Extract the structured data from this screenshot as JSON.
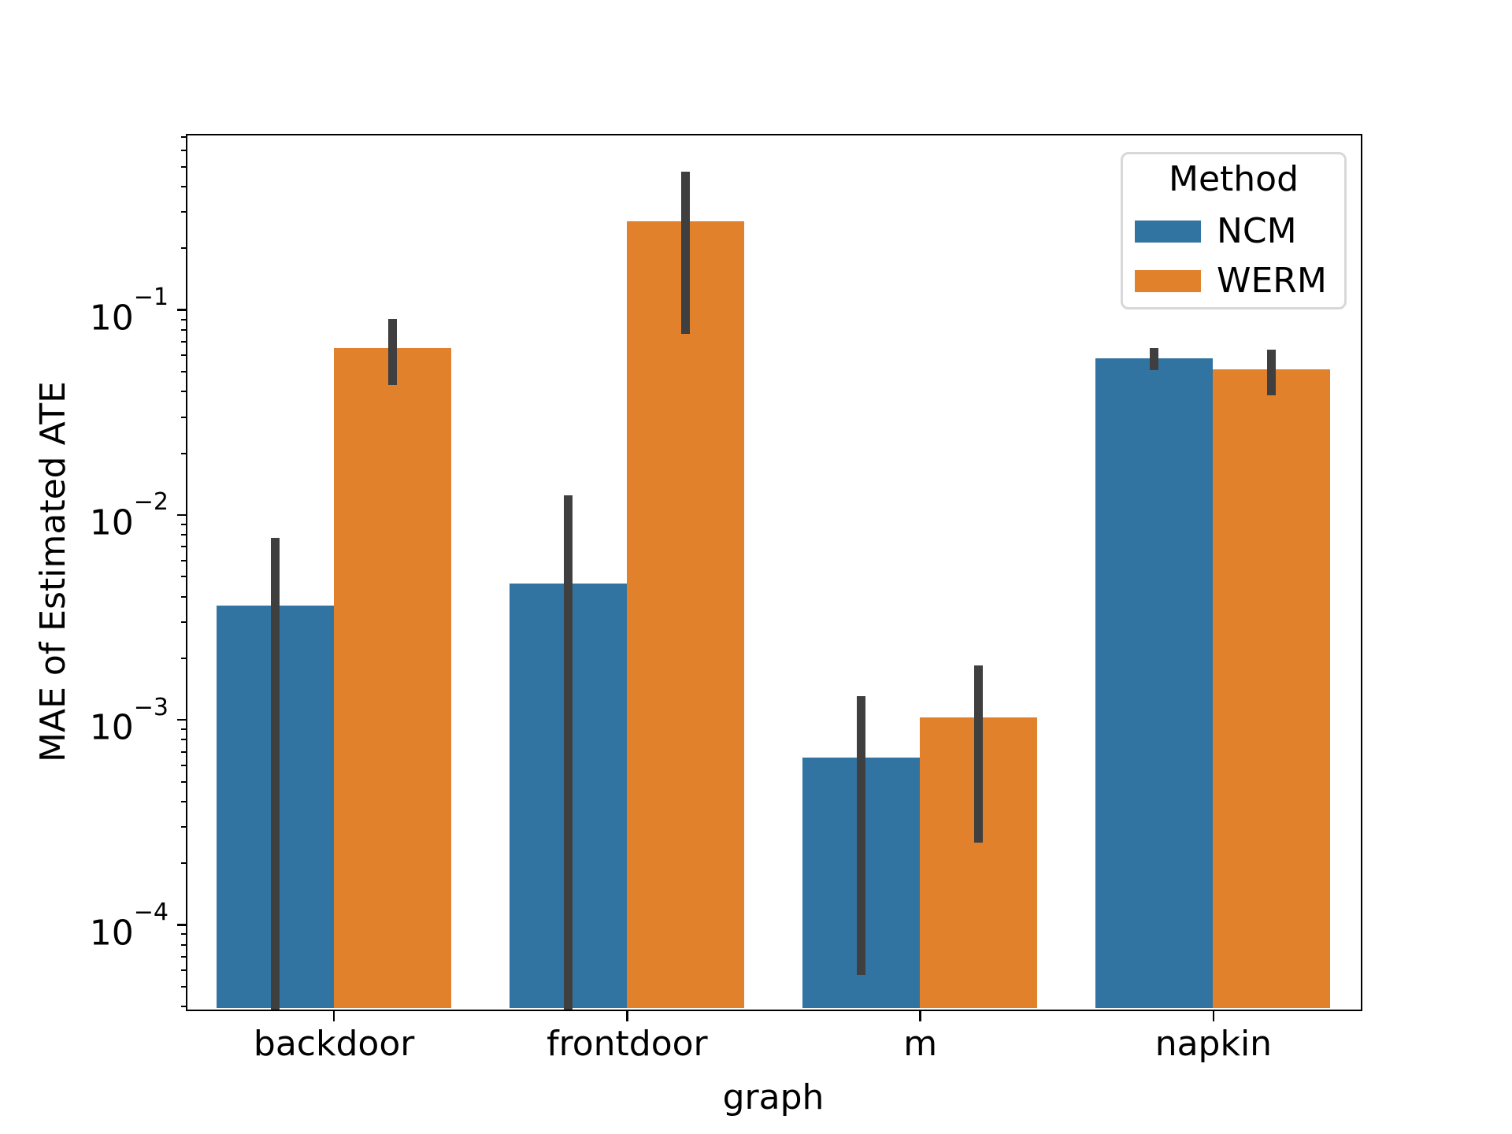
{
  "chart_data": {
    "type": "bar",
    "title": "",
    "xlabel": "graph",
    "ylabel": "MAE of Estimated ATE",
    "yscale": "log",
    "ylim": [
      3.9e-05,
      0.71
    ],
    "categories": [
      "backdoor",
      "frontdoor",
      "m",
      "napkin"
    ],
    "legend": {
      "title": "Method",
      "position": "upper right"
    },
    "series": [
      {
        "name": "NCM",
        "color": "#3274a1",
        "values": [
          0.0036,
          0.0046,
          0.00065,
          0.058
        ],
        "err_lo": [
          2e-05,
          2e-05,
          5.7e-05,
          0.0505
        ],
        "err_hi": [
          0.0077,
          0.0124,
          0.0013,
          0.065
        ]
      },
      {
        "name": "WERM",
        "color": "#e1812c",
        "values": [
          0.065,
          0.27,
          0.00102,
          0.051
        ],
        "err_lo": [
          0.043,
          0.076,
          0.00025,
          0.038
        ],
        "err_hi": [
          0.09,
          0.47,
          0.00183,
          0.064
        ]
      }
    ],
    "error_bar_color": "#3f3f3f",
    "y_major_tick_exponents": [
      -1,
      -2,
      -3,
      -4
    ],
    "bar_group_width_fraction": 0.8,
    "grid": false,
    "background": "#ffffff"
  }
}
